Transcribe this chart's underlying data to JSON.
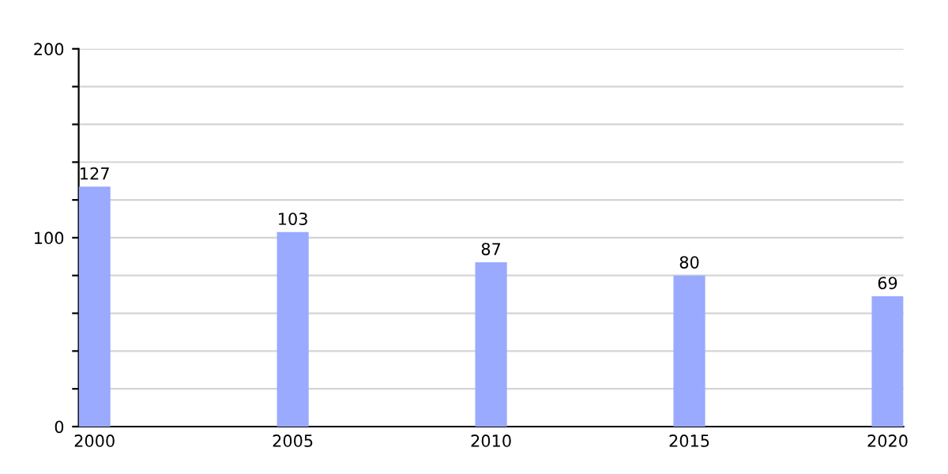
{
  "chart_data": {
    "type": "bar",
    "categories": [
      "2000",
      "2005",
      "2010",
      "2015",
      "2020"
    ],
    "values": [
      127,
      103,
      87,
      80,
      69
    ],
    "color": "#99aaff",
    "data_labels": true,
    "ylim": [
      0,
      200
    ],
    "yticks": [
      0,
      {
        "value": 20,
        "label": null
      },
      {
        "value": 40,
        "label": null
      },
      {
        "value": 60,
        "label": null
      },
      {
        "value": 80,
        "label": null
      },
      100,
      {
        "value": 120,
        "label": null
      },
      {
        "value": 140,
        "label": null
      },
      {
        "value": 160,
        "label": null
      },
      {
        "value": 180,
        "label": null
      },
      200
    ],
    "grid": "y",
    "legend": false
  }
}
